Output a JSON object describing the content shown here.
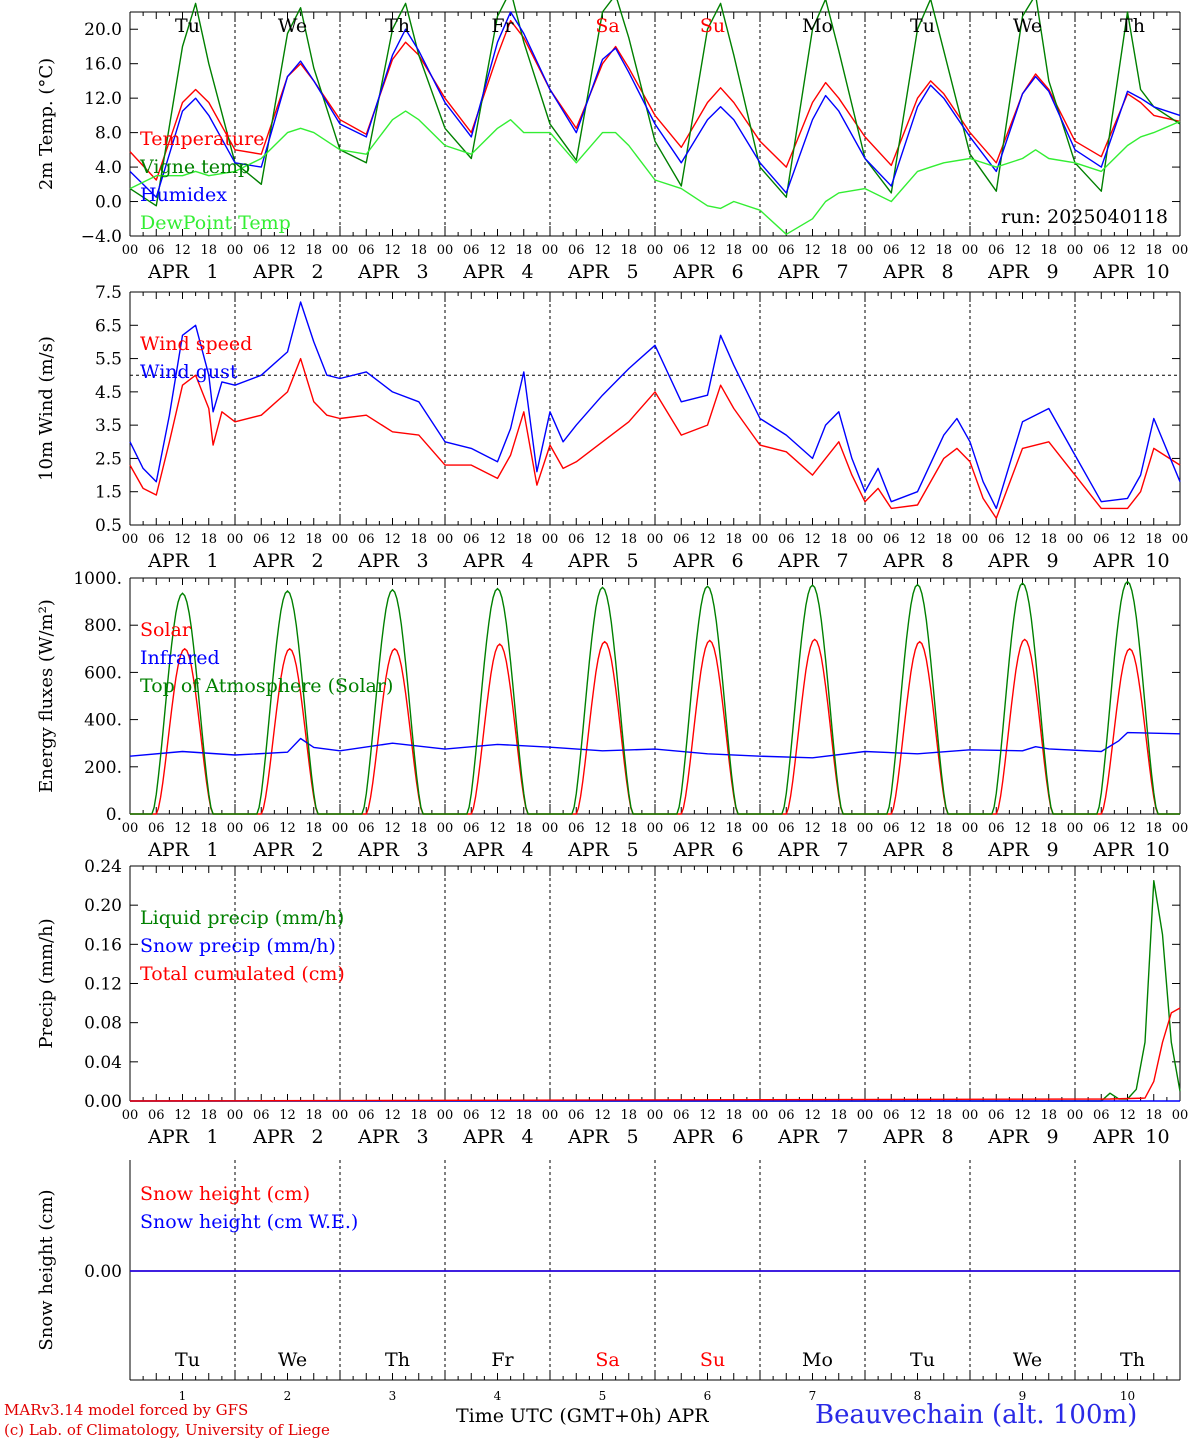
{
  "footer": {
    "model_line": "MARv3.14 model forced by GFS",
    "credit_line": "(c) Lab. of Climatology, University of Liege",
    "time_label": "Time UTC (GMT+0h) APR",
    "station": "Beauvechain (alt. 100m)"
  },
  "colors": {
    "red": "#ff0000",
    "green": "#008000",
    "blue": "#0000ff",
    "lightgreen": "#33ee33",
    "weekend": "#ff0000"
  },
  "axis": {
    "hour_labels": [
      "00",
      "06",
      "12",
      "18"
    ],
    "month_label": "APR",
    "days": [
      1,
      2,
      3,
      4,
      5,
      6,
      7,
      8,
      9,
      10
    ],
    "weekdays": [
      "Tu",
      "We",
      "Th",
      "Fr",
      "Sa",
      "Su",
      "Mo",
      "Tu",
      "We",
      "Th"
    ],
    "weekend_index": [
      4,
      5
    ],
    "final_hour_label": "00"
  },
  "chart_data": [
    {
      "type": "line",
      "ylabel": "2m Temp. (°C)",
      "ylim": [
        -4,
        22
      ],
      "yticks": [
        "20.0",
        "16.0",
        "12.0",
        "8.0",
        "4.0",
        "0.0",
        "−4.0"
      ],
      "ytick_values": [
        20,
        16,
        12,
        8,
        4,
        0,
        -4
      ],
      "run_label": "run: 2025040118",
      "x_unit": "hours since APR 1 00 UTC",
      "series": [
        {
          "name": "Temperature",
          "color": "red",
          "x": [
            0,
            6,
            12,
            15,
            18,
            24,
            30,
            36,
            39,
            42,
            48,
            54,
            60,
            63,
            66,
            72,
            78,
            84,
            87,
            90,
            96,
            102,
            108,
            111,
            114,
            120,
            126,
            132,
            135,
            138,
            144,
            150,
            156,
            159,
            162,
            168,
            174,
            180,
            183,
            186,
            192,
            198,
            204,
            207,
            210,
            216,
            222,
            228,
            231,
            234,
            240
          ],
          "y": [
            5.8,
            2.5,
            11.5,
            13.0,
            11.5,
            6.0,
            5.5,
            14.5,
            16.0,
            14.0,
            9.5,
            7.8,
            16.5,
            18.5,
            17.0,
            12.0,
            8.0,
            17.0,
            21.0,
            19.0,
            13.0,
            8.5,
            16.0,
            18.0,
            15.5,
            10.0,
            6.3,
            11.5,
            13.2,
            11.5,
            7.0,
            4.0,
            11.5,
            13.8,
            12.0,
            7.5,
            4.2,
            12.0,
            14.0,
            12.5,
            8.0,
            4.5,
            12.5,
            14.8,
            13.0,
            7.0,
            5.2,
            12.5,
            11.5,
            10.0,
            9.3
          ]
        },
        {
          "name": "Vigne temp",
          "color": "green",
          "x": [
            0,
            6,
            12,
            15,
            18,
            24,
            30,
            36,
            39,
            42,
            48,
            54,
            60,
            63,
            66,
            72,
            78,
            84,
            87,
            90,
            96,
            102,
            108,
            111,
            114,
            120,
            126,
            132,
            135,
            138,
            144,
            150,
            156,
            159,
            162,
            168,
            174,
            180,
            183,
            186,
            192,
            198,
            204,
            207,
            210,
            216,
            222,
            228,
            231,
            234,
            240
          ],
          "y": [
            1.5,
            -0.5,
            18.0,
            23.0,
            16.0,
            4.5,
            2.0,
            19.5,
            22.5,
            15.5,
            6.0,
            4.5,
            20.0,
            23.0,
            17.0,
            8.5,
            5.0,
            21.5,
            24.5,
            18.5,
            9.0,
            4.8,
            22.0,
            24.0,
            19.0,
            7.0,
            1.8,
            20.0,
            23.0,
            17.0,
            4.0,
            0.5,
            20.0,
            23.5,
            17.5,
            5.0,
            1.0,
            20.0,
            23.5,
            17.5,
            5.5,
            1.2,
            21.5,
            24.0,
            14.0,
            4.5,
            1.2,
            22.0,
            13.0,
            11.0,
            9.0
          ]
        },
        {
          "name": "Humidex",
          "color": "blue",
          "x": [
            0,
            6,
            12,
            15,
            18,
            24,
            30,
            36,
            39,
            42,
            48,
            54,
            60,
            63,
            66,
            72,
            78,
            84,
            87,
            90,
            96,
            102,
            108,
            111,
            114,
            120,
            126,
            132,
            135,
            138,
            144,
            150,
            156,
            159,
            162,
            168,
            174,
            180,
            183,
            186,
            192,
            198,
            204,
            207,
            210,
            216,
            222,
            228,
            231,
            234,
            240
          ],
          "y": [
            3.5,
            0.5,
            10.5,
            12.0,
            10.0,
            4.5,
            4.0,
            14.5,
            16.3,
            14.0,
            9.0,
            7.5,
            17.0,
            20.0,
            17.5,
            11.5,
            7.5,
            18.5,
            22.0,
            19.5,
            13.0,
            8.0,
            16.5,
            17.8,
            15.0,
            9.0,
            4.5,
            9.5,
            11.0,
            9.5,
            4.5,
            1.0,
            9.5,
            12.3,
            10.5,
            5.0,
            1.8,
            11.0,
            13.5,
            12.0,
            7.5,
            3.5,
            12.5,
            14.5,
            12.8,
            6.0,
            4.0,
            12.8,
            12.0,
            11.0,
            10.0
          ]
        },
        {
          "name": "DewPoint Temp",
          "color": "lightgreen",
          "x": [
            0,
            6,
            12,
            15,
            18,
            24,
            30,
            36,
            39,
            42,
            48,
            54,
            60,
            63,
            66,
            72,
            78,
            84,
            87,
            90,
            96,
            102,
            108,
            111,
            114,
            120,
            126,
            132,
            135,
            138,
            144,
            150,
            156,
            159,
            162,
            168,
            174,
            180,
            183,
            186,
            192,
            198,
            204,
            207,
            210,
            216,
            222,
            228,
            231,
            234,
            240
          ],
          "y": [
            1.5,
            3.0,
            3.0,
            3.5,
            3.0,
            3.5,
            5.0,
            8.0,
            8.5,
            8.0,
            6.0,
            5.5,
            9.5,
            10.5,
            9.5,
            6.5,
            5.5,
            8.5,
            9.5,
            8.0,
            8.0,
            4.5,
            8.0,
            8.0,
            6.5,
            2.5,
            1.5,
            -0.5,
            -0.8,
            0.0,
            -1.0,
            -3.8,
            -2.0,
            0.0,
            1.0,
            1.5,
            0.0,
            3.5,
            4.0,
            4.5,
            5.0,
            4.0,
            5.0,
            6.0,
            5.0,
            4.5,
            3.5,
            6.5,
            7.5,
            8.0,
            9.3
          ]
        }
      ]
    },
    {
      "type": "line",
      "ylabel": "10m Wind (m/s)",
      "ylim": [
        0.5,
        7.5
      ],
      "yticks": [
        "7.5",
        "6.5",
        "5.5",
        "4.5",
        "3.5",
        "2.5",
        "1.5",
        "0.5"
      ],
      "ytick_values": [
        7.5,
        6.5,
        5.5,
        4.5,
        3.5,
        2.5,
        1.5,
        0.5
      ],
      "reference_line": 5.0,
      "x_unit": "hours since APR 1 00 UTC",
      "series": [
        {
          "name": "Wind speed",
          "color": "red",
          "x": [
            0,
            3,
            6,
            9,
            12,
            15,
            18,
            19,
            21,
            24,
            30,
            36,
            39,
            42,
            45,
            48,
            54,
            60,
            66,
            72,
            78,
            84,
            87,
            90,
            93,
            96,
            99,
            102,
            108,
            114,
            120,
            126,
            132,
            135,
            138,
            144,
            150,
            156,
            159,
            162,
            165,
            168,
            171,
            174,
            180,
            186,
            189,
            192,
            195,
            198,
            204,
            210,
            216,
            222,
            228,
            231,
            234,
            240
          ],
          "y": [
            2.3,
            1.6,
            1.4,
            3.0,
            4.7,
            5.0,
            4.0,
            2.9,
            3.9,
            3.6,
            3.8,
            4.5,
            5.5,
            4.2,
            3.8,
            3.7,
            3.8,
            3.3,
            3.2,
            2.3,
            2.3,
            1.9,
            2.6,
            3.9,
            1.7,
            2.9,
            2.2,
            2.4,
            3.0,
            3.6,
            4.5,
            3.2,
            3.5,
            4.7,
            4.0,
            2.9,
            2.7,
            2.0,
            2.5,
            3.0,
            2.0,
            1.2,
            1.6,
            1.0,
            1.1,
            2.5,
            2.8,
            2.4,
            1.3,
            0.7,
            2.8,
            3.0,
            2.0,
            1.0,
            1.0,
            1.5,
            2.8,
            2.3
          ]
        },
        {
          "name": "Wind gust",
          "color": "blue",
          "x": [
            0,
            3,
            6,
            9,
            12,
            15,
            18,
            19,
            21,
            24,
            30,
            36,
            39,
            42,
            45,
            48,
            54,
            60,
            66,
            72,
            78,
            84,
            87,
            90,
            93,
            96,
            99,
            102,
            108,
            114,
            120,
            126,
            132,
            135,
            138,
            144,
            150,
            156,
            159,
            162,
            165,
            168,
            171,
            174,
            180,
            186,
            189,
            192,
            195,
            198,
            204,
            210,
            216,
            222,
            228,
            231,
            234,
            240
          ],
          "y": [
            3.0,
            2.2,
            1.8,
            3.8,
            6.2,
            6.5,
            5.0,
            3.9,
            4.8,
            4.7,
            5.0,
            5.7,
            7.2,
            6.0,
            5.0,
            4.9,
            5.1,
            4.5,
            4.2,
            3.0,
            2.8,
            2.4,
            3.4,
            5.1,
            2.1,
            3.9,
            3.0,
            3.5,
            4.4,
            5.2,
            5.9,
            4.2,
            4.4,
            6.2,
            5.3,
            3.7,
            3.2,
            2.5,
            3.5,
            3.9,
            2.5,
            1.5,
            2.2,
            1.2,
            1.5,
            3.2,
            3.7,
            3.0,
            1.8,
            1.0,
            3.6,
            4.0,
            2.6,
            1.2,
            1.3,
            2.0,
            3.7,
            1.8
          ]
        }
      ]
    },
    {
      "type": "line",
      "ylabel": "Energy fluxes (W/m²)",
      "ylim": [
        0,
        1000
      ],
      "yticks": [
        "1000.",
        "800.",
        "600.",
        "400.",
        "200.",
        "0."
      ],
      "ytick_values": [
        1000,
        800,
        600,
        400,
        200,
        0
      ],
      "x_unit": "hours since APR 1 00 UTC",
      "series": [
        {
          "name": "Solar",
          "color": "red",
          "kind": "solar",
          "peaks": [
            700,
            700,
            700,
            720,
            730,
            735,
            740,
            730,
            740,
            700
          ],
          "day_start": 6,
          "day_end": 19
        },
        {
          "name": "Infrared",
          "color": "blue",
          "x": [
            0,
            12,
            24,
            36,
            39,
            42,
            48,
            60,
            72,
            84,
            96,
            108,
            120,
            132,
            144,
            156,
            168,
            180,
            192,
            204,
            207,
            210,
            222,
            226,
            228,
            240
          ],
          "y": [
            245,
            265,
            250,
            262,
            320,
            282,
            268,
            300,
            275,
            295,
            283,
            268,
            275,
            255,
            245,
            238,
            265,
            255,
            272,
            268,
            285,
            276,
            265,
            310,
            345,
            340
          ]
        },
        {
          "name": "Top of Atmosphere (Solar)",
          "color": "green",
          "kind": "toa",
          "peaks": [
            935,
            945,
            950,
            955,
            960,
            965,
            970,
            972,
            978,
            985
          ],
          "day_start": 5,
          "day_end": 19
        }
      ]
    },
    {
      "type": "line",
      "ylabel": "Precip (mm/h)",
      "ylim": [
        0,
        0.24
      ],
      "yticks": [
        "0.24",
        "0.20",
        "0.16",
        "0.12",
        "0.08",
        "0.04",
        "0.00"
      ],
      "ytick_values": [
        0.24,
        0.2,
        0.16,
        0.12,
        0.08,
        0.04,
        0.0
      ],
      "x_unit": "hours since APR 1 00 UTC",
      "series": [
        {
          "name": "Liquid precip (mm/h)",
          "color": "green",
          "x": [
            0,
            222,
            224,
            226,
            228,
            230,
            232,
            234,
            236,
            238,
            240
          ],
          "y": [
            0,
            0,
            0.008,
            0.002,
            0.002,
            0.012,
            0.06,
            0.225,
            0.17,
            0.06,
            0.01
          ]
        },
        {
          "name": "Snow precip (mm/h)",
          "color": "blue",
          "x": [
            0,
            240
          ],
          "y": [
            0,
            0
          ]
        },
        {
          "name": "Total cumulated (cm)",
          "color": "red",
          "x": [
            0,
            224,
            232,
            234,
            236,
            238,
            240
          ],
          "y": [
            0,
            0.002,
            0.003,
            0.02,
            0.06,
            0.09,
            0.095
          ]
        }
      ]
    },
    {
      "type": "line",
      "ylabel": "Snow height (cm)",
      "yticks": [
        "0.00"
      ],
      "ytick_values": [
        0
      ],
      "x_unit": "hours since APR 1 00 UTC",
      "series": [
        {
          "name": "Snow height (cm)",
          "color": "red",
          "x": [
            0,
            240
          ],
          "y": [
            0,
            0
          ]
        },
        {
          "name": "Snow height (cm W.E.)",
          "color": "blue",
          "x": [
            0,
            240
          ],
          "y": [
            0,
            0
          ]
        }
      ]
    }
  ]
}
